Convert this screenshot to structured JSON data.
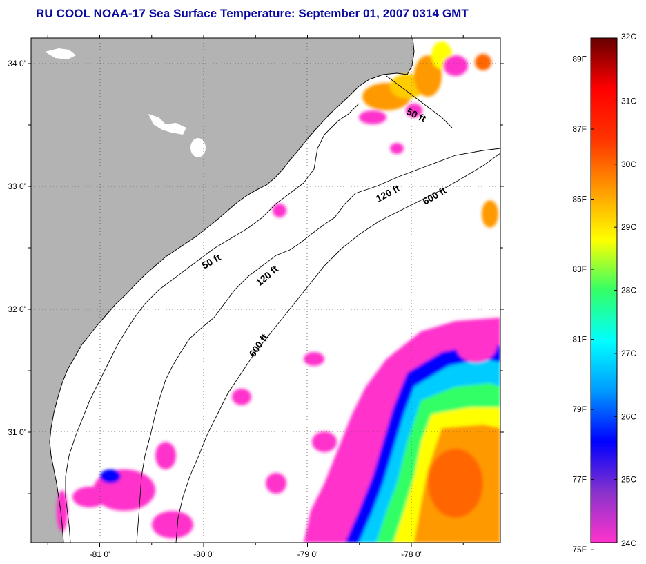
{
  "title": "RU COOL  NOAA-17  Sea Surface Temperature:  September 01, 2007 0314 GMT",
  "map": {
    "x_ticks": [
      {
        "value": -81,
        "label": "-81 0'"
      },
      {
        "value": -80,
        "label": "-80 0'"
      },
      {
        "value": -79,
        "label": "-79 0'"
      },
      {
        "value": -78,
        "label": "-78 0'"
      }
    ],
    "y_ticks": [
      {
        "value": 34,
        "label": "34 0'"
      },
      {
        "value": 33,
        "label": "33 0'"
      },
      {
        "value": 32,
        "label": "32 0'"
      },
      {
        "value": 31,
        "label": "31 0'"
      }
    ],
    "contour_labels": {
      "c50_north": "50 ft",
      "c50_south": "50 ft",
      "c120_north": "120 ft",
      "c120_south": "120 ft",
      "c600_north": "600 ft",
      "c600_south": "600 ft"
    },
    "colors": {
      "land": "#b3b3b3",
      "ocean": "#ffffff",
      "title": "#0a0aa0"
    }
  },
  "colorbar": {
    "celsius_labels": [
      "32C",
      "31C",
      "30C",
      "29C",
      "28C",
      "27C",
      "26C",
      "25C",
      "24C"
    ],
    "fahrenheit_labels": [
      "89F",
      "87F",
      "85F",
      "83F",
      "81F",
      "79F",
      "77F",
      "75F"
    ],
    "celsius_range": [
      24,
      32
    ],
    "colors": [
      "#ff33cc",
      "#8833cc",
      "#0000ff",
      "#0099ff",
      "#00ffff",
      "#33ff66",
      "#ffff00",
      "#ff9900",
      "#ff3300",
      "#ff0000",
      "#660000"
    ]
  }
}
